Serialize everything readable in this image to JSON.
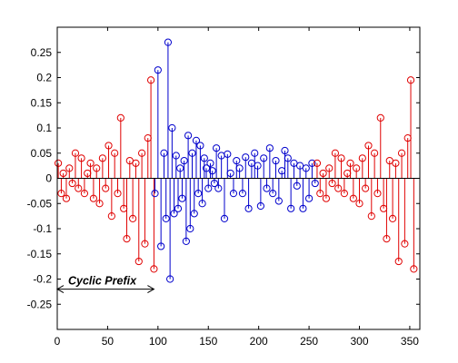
{
  "chart_data": {
    "type": "stem",
    "title": "",
    "xlabel": "",
    "ylabel": "",
    "xlim": [
      0,
      360
    ],
    "ylim": [
      -0.3,
      0.3
    ],
    "x_ticks": [
      0,
      50,
      100,
      150,
      200,
      250,
      300,
      350
    ],
    "y_ticks": [
      0.25,
      0.2,
      0.15,
      0.1,
      0.05,
      0,
      -0.05,
      -0.1,
      -0.15,
      -0.2,
      -0.25
    ],
    "x_tick_labels": [
      "0",
      "50",
      "100",
      "150",
      "200",
      "250",
      "300",
      "350"
    ],
    "y_tick_labels": [
      "0.25",
      "0.2",
      "0.15",
      "0.1",
      "0.05",
      "0",
      "-0.05",
      "-0.1",
      "-0.15",
      "-0.2",
      "-0.25"
    ],
    "grid": false,
    "series": [
      {
        "role": "cyclic-prefix",
        "color": "#e00000",
        "x": [
          1,
          4,
          6,
          9,
          12,
          15,
          18,
          21,
          24,
          27,
          30,
          33,
          36,
          39,
          42,
          45,
          48,
          51,
          54,
          57,
          60,
          63,
          66,
          69,
          72,
          75,
          78,
          81,
          84,
          87,
          90,
          93,
          96
        ],
        "y": [
          0.03,
          -0.03,
          0.01,
          -0.04,
          0.02,
          -0.01,
          0.05,
          -0.02,
          0.04,
          -0.03,
          0.01,
          0.03,
          -0.04,
          0.02,
          -0.05,
          0.04,
          -0.02,
          0.065,
          -0.075,
          0.05,
          -0.03,
          0.12,
          -0.06,
          -0.12,
          0.035,
          -0.08,
          0.03,
          -0.165,
          0.05,
          -0.13,
          0.08,
          0.195,
          -0.18
        ]
      },
      {
        "role": "symbol",
        "color": "#0000cc",
        "x": [
          97,
          100,
          103,
          106,
          108,
          110,
          112,
          114,
          116,
          118,
          120,
          122,
          124,
          126,
          128,
          130,
          132,
          134,
          136,
          138,
          140,
          142,
          144,
          146,
          148,
          150,
          152,
          154,
          156,
          158,
          160,
          163,
          166,
          169,
          172,
          175,
          178,
          181,
          184,
          187,
          190,
          193,
          196,
          199,
          202,
          205,
          208,
          211,
          214,
          217,
          220,
          223,
          226,
          229,
          232,
          235,
          238,
          241,
          244,
          247,
          250,
          253,
          256
        ],
        "y": [
          -0.03,
          0.215,
          -0.135,
          0.05,
          -0.08,
          0.27,
          -0.2,
          0.1,
          -0.07,
          0.045,
          -0.06,
          0.02,
          -0.04,
          0.035,
          -0.125,
          0.085,
          -0.1,
          0.05,
          -0.07,
          0.075,
          -0.03,
          0.065,
          -0.05,
          0.04,
          0.02,
          -0.02,
          0.03,
          0.015,
          -0.01,
          0.06,
          -0.02,
          0.045,
          -0.08,
          0.048,
          0.01,
          -0.03,
          0.035,
          0.02,
          -0.03,
          0.042,
          -0.06,
          0.03,
          0.05,
          0.025,
          -0.055,
          0.04,
          -0.02,
          0.06,
          -0.03,
          0.035,
          -0.045,
          0.015,
          0.055,
          0.04,
          -0.06,
          0.03,
          -0.015,
          0.025,
          -0.06,
          0.02,
          -0.04,
          0.03,
          -0.01
        ]
      },
      {
        "role": "cyclic-prefix-copy",
        "color": "#e00000",
        "x": [
          258,
          261,
          264,
          267,
          270,
          273,
          276,
          279,
          282,
          285,
          288,
          291,
          294,
          297,
          300,
          303,
          306,
          309,
          312,
          315,
          318,
          321,
          324,
          327,
          330,
          333,
          336,
          339,
          342,
          345,
          348,
          351,
          354
        ],
        "y": [
          0.03,
          -0.03,
          0.01,
          -0.04,
          0.02,
          -0.01,
          0.05,
          -0.02,
          0.04,
          -0.03,
          0.01,
          0.03,
          -0.04,
          0.02,
          -0.05,
          0.04,
          -0.02,
          0.065,
          -0.075,
          0.05,
          -0.03,
          0.12,
          -0.06,
          -0.12,
          0.035,
          -0.08,
          0.03,
          -0.165,
          0.05,
          -0.13,
          0.08,
          0.195,
          -0.18
        ]
      }
    ],
    "annotation": {
      "text": "Cyclic Prefix",
      "y": -0.22,
      "x_start": 0,
      "x_end": 96
    }
  }
}
